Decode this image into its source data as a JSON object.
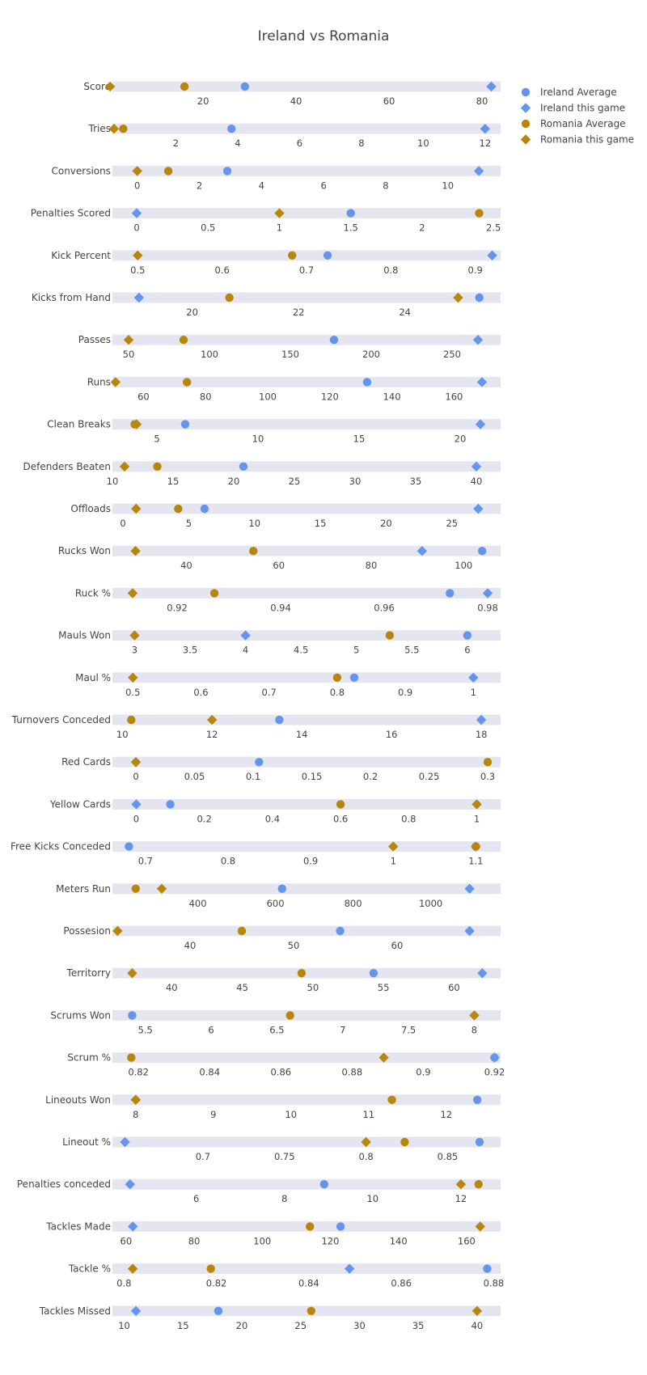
{
  "chart_data": {
    "type": "scatter",
    "title": "Ireland vs Romania",
    "xlabel": "",
    "ylabel": "",
    "legend_position": "top-right",
    "legend": [
      {
        "name": "Ireland Average",
        "symbol": "circle",
        "color": "#6495ED"
      },
      {
        "name": "Ireland this game",
        "symbol": "diamond",
        "color": "#6495ED"
      },
      {
        "name": "Romania Average",
        "symbol": "circle",
        "color": "#B8860B"
      },
      {
        "name": "Romania this game",
        "symbol": "diamond",
        "color": "#B8860B"
      }
    ],
    "metrics": [
      {
        "name": "Score",
        "range": [
          0.5,
          84
        ],
        "ticks": [
          20,
          40,
          60,
          80
        ],
        "tick_labels": [
          "20",
          "40",
          "60",
          "80"
        ],
        "ireland_avg": 29,
        "ireland_game": 82,
        "romania_avg": 16,
        "romania_game": 0
      },
      {
        "name": "Tries",
        "range": [
          -0.05,
          12.5
        ],
        "ticks": [
          2,
          4,
          6,
          8,
          10,
          12
        ],
        "tick_labels": [
          "2",
          "4",
          "6",
          "8",
          "10",
          "12"
        ],
        "ireland_avg": 3.8,
        "ireland_game": 12,
        "romania_avg": 0.3,
        "romania_game": 0
      },
      {
        "name": "Conversions",
        "range": [
          -0.8,
          11.7
        ],
        "ticks": [
          0,
          2,
          4,
          6,
          8,
          10
        ],
        "tick_labels": [
          "0",
          "2",
          "4",
          "6",
          "8",
          "10"
        ],
        "ireland_avg": 2.9,
        "ireland_game": 11,
        "romania_avg": 1,
        "romania_game": 0
      },
      {
        "name": "Penalties Scored",
        "range": [
          -0.17,
          2.55
        ],
        "ticks": [
          0,
          0.5,
          1,
          1.5,
          2,
          2.5
        ],
        "tick_labels": [
          "0",
          "0.5",
          "1",
          "1.5",
          "2",
          "2.5"
        ],
        "ireland_avg": 1.5,
        "ireland_game": 0,
        "romania_avg": 2.4,
        "romania_game": 1
      },
      {
        "name": "Kick Percent",
        "range": [
          0.47,
          0.93
        ],
        "ticks": [
          0.5,
          0.6,
          0.7,
          0.8,
          0.9
        ],
        "tick_labels": [
          "0.5",
          "0.6",
          "0.7",
          "0.8",
          "0.9"
        ],
        "ireland_avg": 0.725,
        "ireland_game": 0.92,
        "romania_avg": 0.683,
        "romania_game": 0.5
      },
      {
        "name": "Kicks from Hand",
        "range": [
          18.5,
          25.8
        ],
        "ticks": [
          20,
          22,
          24
        ],
        "tick_labels": [
          "20",
          "22",
          "24"
        ],
        "ireland_avg": 25.4,
        "ireland_game": 19,
        "romania_avg": 20.7,
        "romania_game": 25
      },
      {
        "name": "Passes",
        "range": [
          40,
          280
        ],
        "ticks": [
          50,
          100,
          150,
          200,
          250
        ],
        "tick_labels": [
          "50",
          "100",
          "150",
          "200",
          "250"
        ],
        "ireland_avg": 177,
        "ireland_game": 266,
        "romania_avg": 84,
        "romania_game": 50
      },
      {
        "name": "Runs",
        "range": [
          50,
          175
        ],
        "ticks": [
          60,
          80,
          100,
          120,
          140,
          160
        ],
        "tick_labels": [
          "60",
          "80",
          "100",
          "120",
          "140",
          "160"
        ],
        "ireland_avg": 132,
        "ireland_game": 169,
        "romania_avg": 74,
        "romania_game": 51
      },
      {
        "name": "Clean Breaks",
        "range": [
          2.8,
          22
        ],
        "ticks": [
          5,
          10,
          15,
          20
        ],
        "tick_labels": [
          "5",
          "10",
          "15",
          "20"
        ],
        "ireland_avg": 6.4,
        "ireland_game": 21,
        "romania_avg": 3.9,
        "romania_game": 4
      },
      {
        "name": "Defenders Beaten",
        "range": [
          10,
          42
        ],
        "ticks": [
          10,
          15,
          20,
          25,
          30,
          35,
          40
        ],
        "tick_labels": [
          "10",
          "15",
          "20",
          "25",
          "30",
          "35",
          "40"
        ],
        "ireland_avg": 20.8,
        "ireland_game": 40,
        "romania_avg": 13.7,
        "romania_game": 11
      },
      {
        "name": "Offloads",
        "range": [
          -0.8,
          28.7
        ],
        "ticks": [
          0,
          5,
          10,
          15,
          20,
          25
        ],
        "tick_labels": [
          "0",
          "5",
          "10",
          "15",
          "20",
          "25"
        ],
        "ireland_avg": 6.2,
        "ireland_game": 27,
        "romania_avg": 4.2,
        "romania_game": 1
      },
      {
        "name": "Rucks Won",
        "range": [
          24,
          108
        ],
        "ticks": [
          40,
          60,
          80,
          100
        ],
        "tick_labels": [
          "40",
          "60",
          "80",
          "100"
        ],
        "ireland_avg": 104,
        "ireland_game": 91,
        "romania_avg": 54.5,
        "romania_game": 29
      },
      {
        "name": "Ruck %",
        "range": [
          0.9075,
          0.9825
        ],
        "ticks": [
          0.92,
          0.94,
          0.96,
          0.98
        ],
        "tick_labels": [
          "0.92",
          "0.94",
          "0.96",
          "0.98"
        ],
        "ireland_avg": 0.9727,
        "ireland_game": 0.98,
        "romania_avg": 0.9272,
        "romania_game": 0.9114
      },
      {
        "name": "Mauls Won",
        "range": [
          2.8,
          6.3
        ],
        "ticks": [
          3,
          3.5,
          4,
          4.5,
          5,
          5.5,
          6
        ],
        "tick_labels": [
          "3",
          "3.5",
          "4",
          "4.5",
          "5",
          "5.5",
          "6"
        ],
        "ireland_avg": 6,
        "ireland_game": 4,
        "romania_avg": 5.3,
        "romania_game": 3
      },
      {
        "name": "Maul %",
        "range": [
          0.47,
          1.04
        ],
        "ticks": [
          0.5,
          0.6,
          0.7,
          0.8,
          0.9,
          1
        ],
        "tick_labels": [
          "0.5",
          "0.6",
          "0.7",
          "0.8",
          "0.9",
          "1"
        ],
        "ireland_avg": 0.825,
        "ireland_game": 1,
        "romania_avg": 0.8,
        "romania_game": 0.5
      },
      {
        "name": "Turnovers Conceded",
        "range": [
          9.78,
          18.43
        ],
        "ticks": [
          10,
          12,
          14,
          16,
          18
        ],
        "tick_labels": [
          "10",
          "12",
          "14",
          "16",
          "18"
        ],
        "ireland_avg": 13.5,
        "ireland_game": 18,
        "romania_avg": 10.2,
        "romania_game": 12
      },
      {
        "name": "Red Cards",
        "range": [
          -0.02,
          0.311
        ],
        "ticks": [
          0,
          0.05,
          0.1,
          0.15,
          0.2,
          0.25,
          0.3
        ],
        "tick_labels": [
          "0",
          "0.05",
          "0.1",
          "0.15",
          "0.2",
          "0.25",
          "0.3"
        ],
        "ireland_avg": 0.105,
        "ireland_game": 0,
        "romania_avg": 0.3,
        "romania_game": 0
      },
      {
        "name": "Yellow Cards",
        "range": [
          -0.07,
          1.07
        ],
        "ticks": [
          0,
          0.2,
          0.4,
          0.6,
          0.8,
          1
        ],
        "tick_labels": [
          "0",
          "0.2",
          "0.4",
          "0.6",
          "0.8",
          "1"
        ],
        "ireland_avg": 0.1,
        "ireland_game": 0,
        "romania_avg": 0.6,
        "romania_game": 1
      },
      {
        "name": "Free Kicks Conceded",
        "range": [
          0.66,
          1.13
        ],
        "ticks": [
          0.7,
          0.8,
          0.9,
          1,
          1.1
        ],
        "tick_labels": [
          "0.7",
          "0.8",
          "0.9",
          "1",
          "1.1"
        ],
        "ireland_avg": 0.68,
        "ireland_game": 1.1,
        "romania_avg": 1.1,
        "romania_game": 1
      },
      {
        "name": "Meters Run",
        "range": [
          180,
          1180
        ],
        "ticks": [
          400,
          600,
          800,
          1000
        ],
        "tick_labels": [
          "400",
          "600",
          "800",
          "1000"
        ],
        "ireland_avg": 617,
        "ireland_game": 1100,
        "romania_avg": 240,
        "romania_game": 307
      },
      {
        "name": "Possesion",
        "range": [
          32.5,
          70
        ],
        "ticks": [
          40,
          50,
          60
        ],
        "tick_labels": [
          "40",
          "50",
          "60"
        ],
        "ireland_avg": 54.5,
        "ireland_game": 67,
        "romania_avg": 45,
        "romania_game": 33
      },
      {
        "name": "Territorry",
        "range": [
          35.8,
          63.3
        ],
        "ticks": [
          40,
          45,
          50,
          55,
          60
        ],
        "tick_labels": [
          "40",
          "45",
          "50",
          "55",
          "60"
        ],
        "ireland_avg": 54.3,
        "ireland_game": 62,
        "romania_avg": 49.2,
        "romania_game": 37.2
      },
      {
        "name": "Scrums Won",
        "range": [
          5.25,
          8.2
        ],
        "ticks": [
          5.5,
          6,
          6.5,
          7,
          7.5,
          8
        ],
        "tick_labels": [
          "5.5",
          "6",
          "6.5",
          "7",
          "7.5",
          "8"
        ],
        "ireland_avg": 5.4,
        "ireland_game": 8,
        "romania_avg": 6.6,
        "romania_game": 8
      },
      {
        "name": "Scrum %",
        "range": [
          0.8127,
          0.9217
        ],
        "ticks": [
          0.82,
          0.84,
          0.86,
          0.88,
          0.9,
          0.92
        ],
        "tick_labels": [
          "0.82",
          "0.84",
          "0.86",
          "0.88",
          "0.9",
          "0.92"
        ],
        "ireland_avg": 0.92,
        "ireland_game": 0.92,
        "romania_avg": 0.818,
        "romania_game": 0.8889
      },
      {
        "name": "Lineouts Won",
        "range": [
          7.7,
          12.7
        ],
        "ticks": [
          8,
          9,
          10,
          11,
          12
        ],
        "tick_labels": [
          "8",
          "9",
          "10",
          "11",
          "12"
        ],
        "ireland_avg": 12.4,
        "ireland_game": 8,
        "romania_avg": 11.3,
        "romania_game": 8
      },
      {
        "name": "Lineout %",
        "range": [
          0.6445,
          0.8825
        ],
        "ticks": [
          0.7,
          0.75,
          0.8,
          0.85
        ],
        "tick_labels": [
          "0.7",
          "0.75",
          "0.8",
          "0.85"
        ],
        "ireland_avg": 0.8696,
        "ireland_game": 0.6522,
        "romania_avg": 0.8237,
        "romania_game": 0.8
      },
      {
        "name": "Penalties conceded",
        "range": [
          4.1,
          12.9
        ],
        "ticks": [
          6,
          8,
          10,
          12
        ],
        "tick_labels": [
          "6",
          "8",
          "10",
          "12"
        ],
        "ireland_avg": 8.9,
        "ireland_game": 4.5,
        "romania_avg": 12.4,
        "romania_game": 12
      },
      {
        "name": "Tackles Made",
        "range": [
          56,
          170
        ],
        "ticks": [
          60,
          80,
          100,
          120,
          140,
          160
        ],
        "tick_labels": [
          "60",
          "80",
          "100",
          "120",
          "140",
          "160"
        ],
        "ireland_avg": 123,
        "ireland_game": 62,
        "romania_avg": 114,
        "romania_game": 164
      },
      {
        "name": "Tackle %",
        "range": [
          0.7975,
          0.8815
        ],
        "ticks": [
          0.8,
          0.82,
          0.84,
          0.86,
          0.88
        ],
        "tick_labels": [
          "0.8",
          "0.82",
          "0.84",
          "0.86",
          "0.88"
        ],
        "ireland_avg": 0.8786,
        "ireland_game": 0.8488,
        "romania_avg": 0.8188,
        "romania_game": 0.8019
      },
      {
        "name": "Tackles Missed",
        "range": [
          9,
          42
        ],
        "ticks": [
          10,
          15,
          20,
          25,
          30,
          35,
          40
        ],
        "tick_labels": [
          "10",
          "15",
          "20",
          "25",
          "30",
          "35",
          "40"
        ],
        "ireland_avg": 18,
        "ireland_game": 11,
        "romania_avg": 25.9,
        "romania_game": 40
      }
    ]
  }
}
